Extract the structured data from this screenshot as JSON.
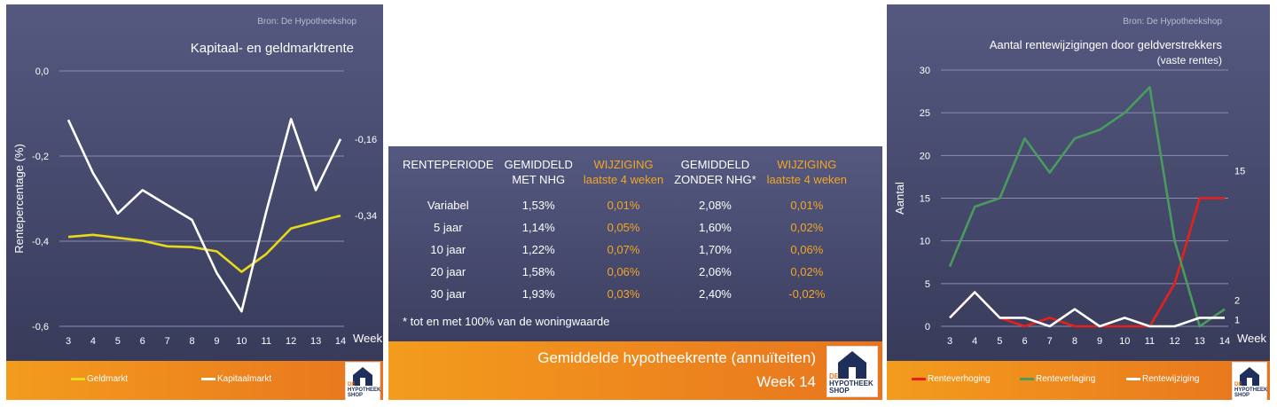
{
  "left_chart": {
    "source": "Bron: De Hypotheekshop",
    "chart_data": {
      "type": "line",
      "title": "Kapitaal- en geldmarktrente",
      "ylabel": "Rentepercentage (%)",
      "xlabel": "Week",
      "x": [
        3,
        4,
        5,
        6,
        7,
        8,
        9,
        10,
        11,
        12,
        13,
        14
      ],
      "ylim": [
        -0.6,
        0.0
      ],
      "yticks": [
        "0,0",
        "-0,2",
        "-0,4",
        "-0,6"
      ],
      "series": [
        {
          "name": "Geldmarkt",
          "color": "#e8d91a",
          "values": [
            -0.39,
            -0.385,
            -0.392,
            -0.399,
            -0.412,
            -0.414,
            -0.424,
            -0.472,
            -0.43,
            -0.37,
            -0.355,
            -0.34
          ]
        },
        {
          "name": "Kapitaalmarkt",
          "color": "#ffffff",
          "values": [
            -0.115,
            -0.24,
            -0.335,
            -0.28,
            -0.315,
            -0.35,
            -0.475,
            -0.565,
            -0.33,
            -0.113,
            -0.28,
            -0.16
          ]
        }
      ],
      "end_labels": [
        "-0,16",
        "-0,34"
      ],
      "grid": true,
      "legend": "bottom"
    }
  },
  "table": {
    "headers": [
      [
        "RENTEPERIODE",
        ""
      ],
      [
        "GEMIDDELD",
        "MET NHG"
      ],
      [
        "WIJZIGING",
        "laatste 4 weken"
      ],
      [
        "GEMIDDELD",
        "ZONDER NHG*"
      ],
      [
        "WIJZIGING",
        "laatste 4 weken"
      ]
    ],
    "rows": [
      [
        "Variabel",
        "1,53%",
        "0,01%",
        "2,08%",
        "0,01%"
      ],
      [
        "5 jaar",
        "1,14%",
        "0,05%",
        "1,60%",
        "0,02%"
      ],
      [
        "10 jaar",
        "1,22%",
        "0,07%",
        "1,70%",
        "0,06%"
      ],
      [
        "20 jaar",
        "1,58%",
        "0,06%",
        "2,06%",
        "0,02%"
      ],
      [
        "30 jaar",
        "1,93%",
        "0,03%",
        "2,40%",
        "-0,02%"
      ]
    ],
    "footnote": "* tot en met 100% van de woningwaarde",
    "title": "Gemiddelde hypotheekrente (annuïteiten)",
    "week": "Week 14"
  },
  "right_chart": {
    "source": "Bron: De Hypotheekshop",
    "chart_data": {
      "type": "line",
      "title": "Aantal rentewijzigingen door geldverstrekkers",
      "subtitle": "(vaste rentes)",
      "ylabel": "Aantal",
      "xlabel": "Week",
      "x": [
        3,
        4,
        5,
        6,
        7,
        8,
        9,
        10,
        11,
        12,
        13,
        14
      ],
      "ylim": [
        0,
        30
      ],
      "yticks": [
        "30",
        "25",
        "20",
        "15",
        "10",
        "5",
        "0"
      ],
      "series": [
        {
          "name": "Renteverhoging",
          "color": "#e8201c",
          "values": [
            1,
            4,
            1,
            0,
            1,
            0,
            0,
            0,
            0,
            5,
            15,
            15
          ]
        },
        {
          "name": "Renteverlaging",
          "color": "#4a9b5e",
          "values": [
            7,
            14,
            15,
            22,
            18,
            22,
            23,
            25,
            28,
            10,
            0,
            2
          ]
        },
        {
          "name": "Rentewijziging",
          "color": "#ffffff",
          "values": [
            1,
            4,
            1,
            1,
            0,
            2,
            0,
            1,
            0,
            0,
            1,
            1
          ]
        }
      ],
      "end_labels": [
        "15",
        "2",
        "1"
      ],
      "grid": true,
      "legend": "bottom"
    }
  },
  "logo": {
    "line1": "DE",
    "line2": "HYPOTHEEK",
    "line3": "SHOP"
  }
}
